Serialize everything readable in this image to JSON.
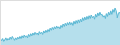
{
  "chart_data": {
    "type": "area",
    "values": [
      18,
      14,
      20,
      12,
      16,
      22,
      15,
      20,
      16,
      24,
      18,
      26,
      20,
      15,
      22,
      17,
      24,
      19,
      26,
      20,
      28,
      22,
      30,
      24,
      28,
      22,
      32,
      26,
      34,
      28,
      36,
      30,
      38,
      32,
      36,
      30,
      40,
      34,
      38,
      32,
      42,
      36,
      44,
      38,
      46,
      40,
      50,
      44,
      52,
      46,
      54,
      48,
      56,
      50,
      54,
      48,
      58,
      52,
      62,
      55,
      64,
      57,
      66,
      59,
      68,
      60,
      66,
      58,
      70,
      62,
      72,
      64,
      74,
      66,
      76,
      68,
      80,
      72,
      82,
      74,
      84,
      76,
      86,
      78,
      88,
      80,
      84,
      76,
      90,
      82,
      94,
      86,
      96,
      88,
      90,
      82,
      86,
      78,
      92,
      84,
      96,
      88,
      100,
      90,
      104,
      96,
      108,
      100,
      80,
      92,
      96,
      90
    ],
    "color": "#5BB8D4",
    "xlim": [
      0,
      111
    ],
    "ylim": [
      0,
      130
    ],
    "grid": false,
    "tick_labels": false
  }
}
